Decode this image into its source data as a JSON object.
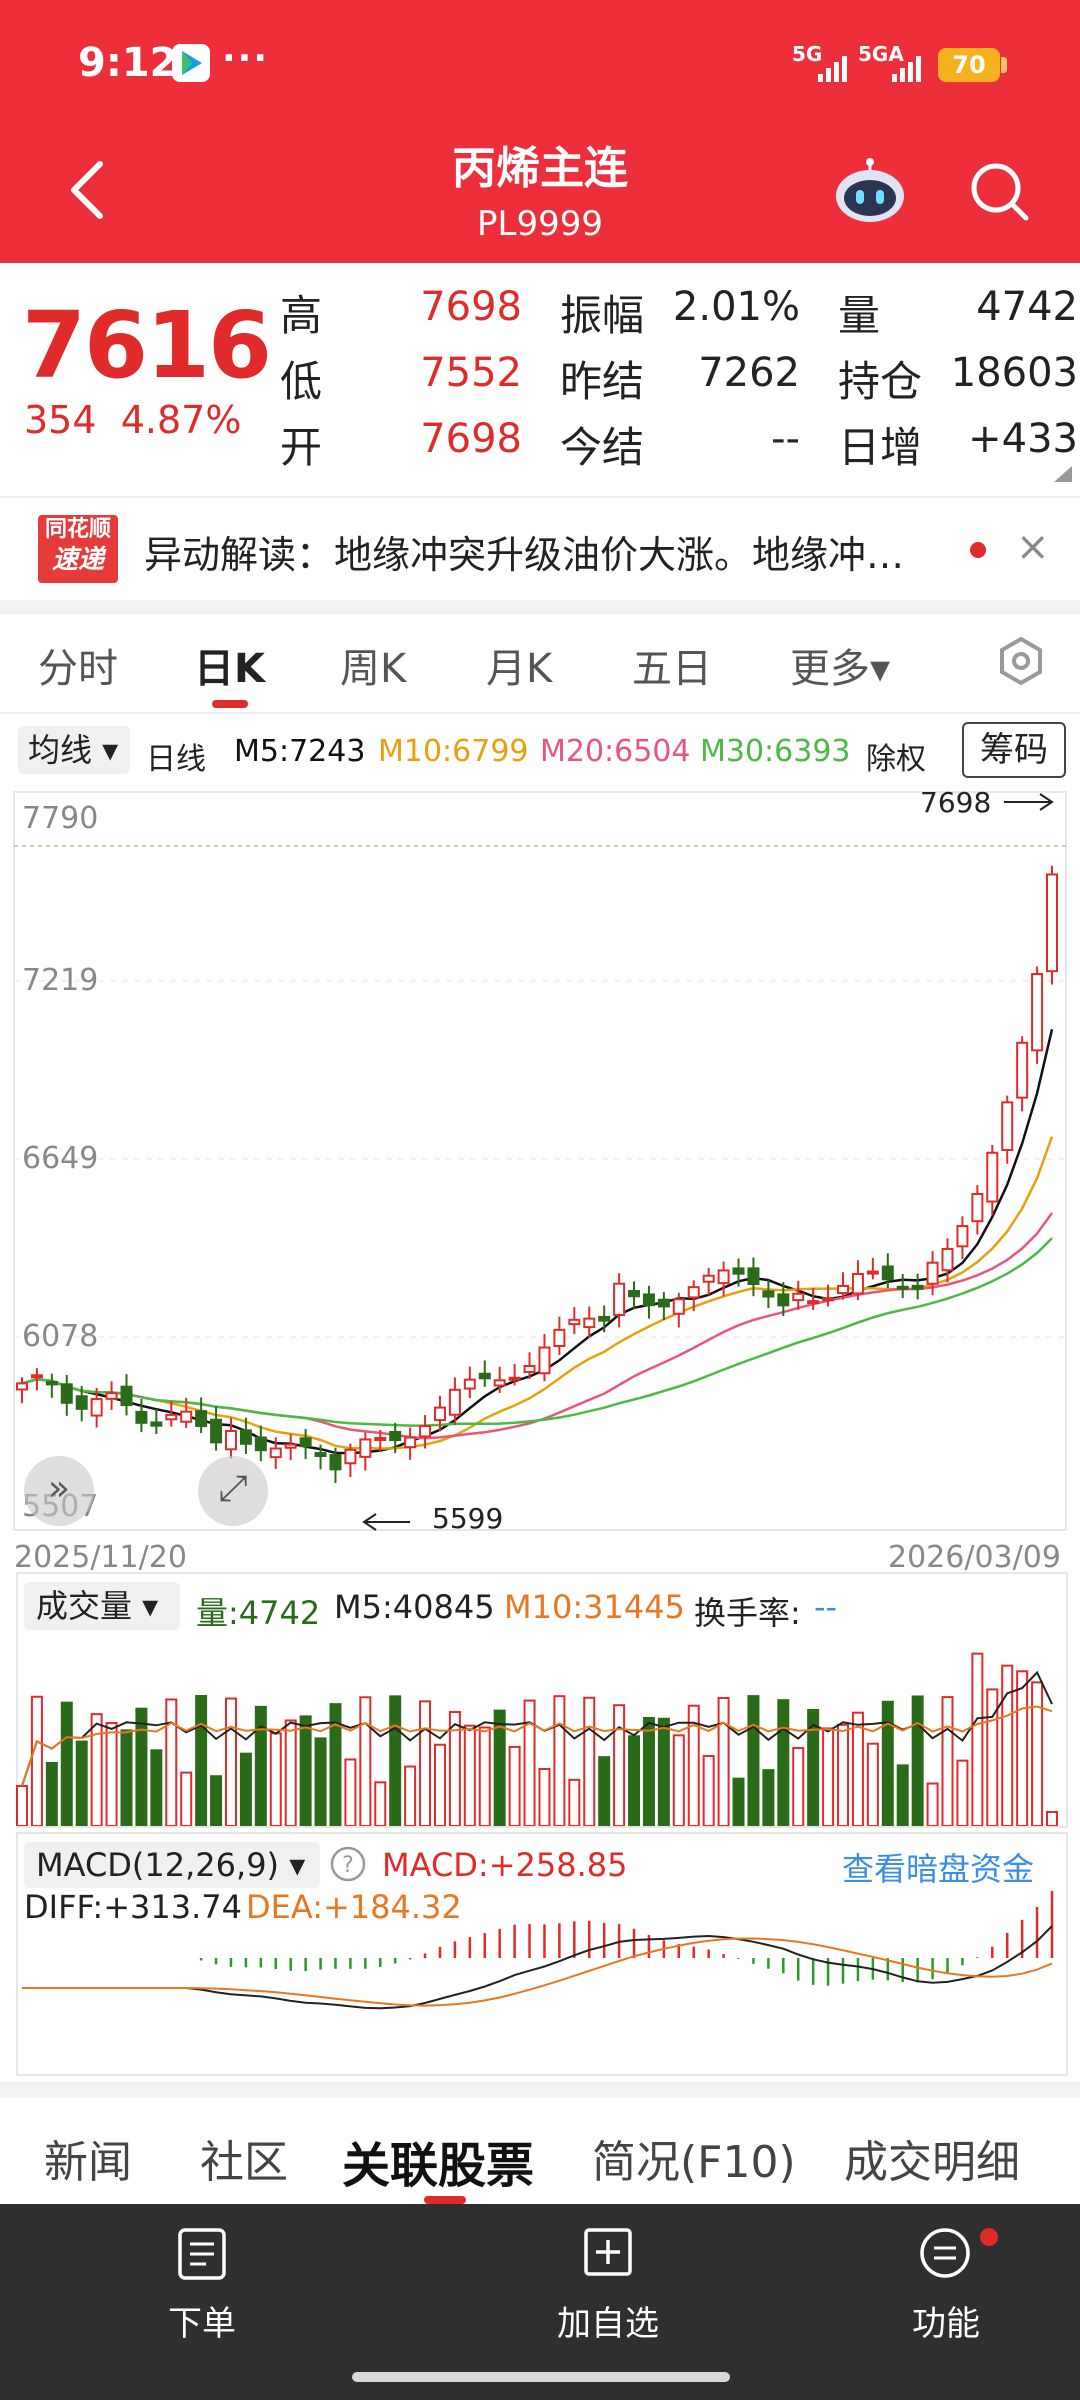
{
  "status_bar": {
    "time": "9:12",
    "dots": "···",
    "net1": "5G",
    "net2": "5GA",
    "battery": "70"
  },
  "header": {
    "title": "丙烯主连",
    "code": "PL9999"
  },
  "quote": {
    "price": "7616",
    "change": "354",
    "change_pct": "4.87%",
    "grid": [
      {
        "label": "高",
        "value": "7698",
        "color": "red"
      },
      {
        "label": "振幅",
        "value": "2.01%",
        "color": "black"
      },
      {
        "label": "量",
        "value": "4742",
        "color": "black"
      },
      {
        "label": "低",
        "value": "7552",
        "color": "red"
      },
      {
        "label": "昨结",
        "value": "7262",
        "color": "black"
      },
      {
        "label": "持仓",
        "value": "18603",
        "color": "black"
      },
      {
        "label": "开",
        "value": "7698",
        "color": "red"
      },
      {
        "label": "今结",
        "value": "--",
        "color": "black"
      },
      {
        "label": "日增",
        "value": "+433",
        "color": "black"
      }
    ]
  },
  "news": {
    "logo_line1": "同花顺",
    "logo_line2": "速递",
    "text": "异动解读：地缘冲突升级油价大涨。地缘冲…",
    "close": "×"
  },
  "tabs": [
    "分时",
    "日K",
    "周K",
    "月K",
    "五日",
    "更多▾"
  ],
  "indicators": {
    "ma_button": "均线 ▾",
    "period": "日线",
    "m5": "M5:7243",
    "m10": "M10:6799",
    "m20": "M20:6504",
    "m30": "M30:6393",
    "adjust": "除权",
    "chip": "筹码",
    "colors": {
      "m5": "#111111",
      "m10": "#e5a20b",
      "m20": "#e8577a",
      "m30": "#4cb845"
    }
  },
  "kline": {
    "y_labels": [
      "7790",
      "7219",
      "6649",
      "6078",
      "5507"
    ],
    "high_marker": "7698",
    "low_marker": "5599",
    "start_date": "2025/11/20",
    "end_date": "2026/03/09"
  },
  "volume": {
    "title": "成交量 ▾",
    "vol": "量:4742",
    "m5": "M5:40845",
    "m10": "M10:31445",
    "turnover_label": "换手率:",
    "turnover_value": "--"
  },
  "macd": {
    "title": "MACD(12,26,9) ▾",
    "help": "?",
    "macd": "MACD:+258.85",
    "link": "查看暗盘资金",
    "diff": "DIFF:+313.74",
    "dea": "DEA:+184.32"
  },
  "bottom_tabs": [
    "新闻",
    "社区",
    "关联股票",
    "简况(F10)",
    "成交明细"
  ],
  "bottom_bar": [
    "下单",
    "加自选",
    "功能"
  ]
}
